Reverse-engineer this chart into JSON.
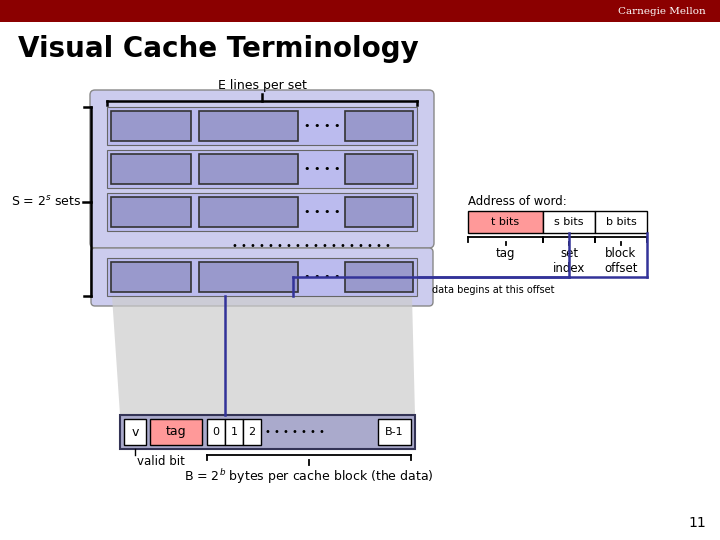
{
  "title": "Visual Cache Terminology",
  "carnegie_mellon_text": "Carnegie Mellon",
  "header_bar_color": "#8B0000",
  "background_color": "#FFFFFF",
  "slide_number": "11",
  "cache_row_fill": "#AAAADD",
  "cache_row_bg": "#BBBBEE",
  "cache_outer_bg": "#CCCCEE",
  "cache_box_color": "#9999CC",
  "cache_box_edge": "#333333",
  "t_bits_color": "#FF9999",
  "line_color": "#333399",
  "tag_bottom_color": "#FF9999",
  "brace_color": "#000000",
  "dots_color": "#000000"
}
